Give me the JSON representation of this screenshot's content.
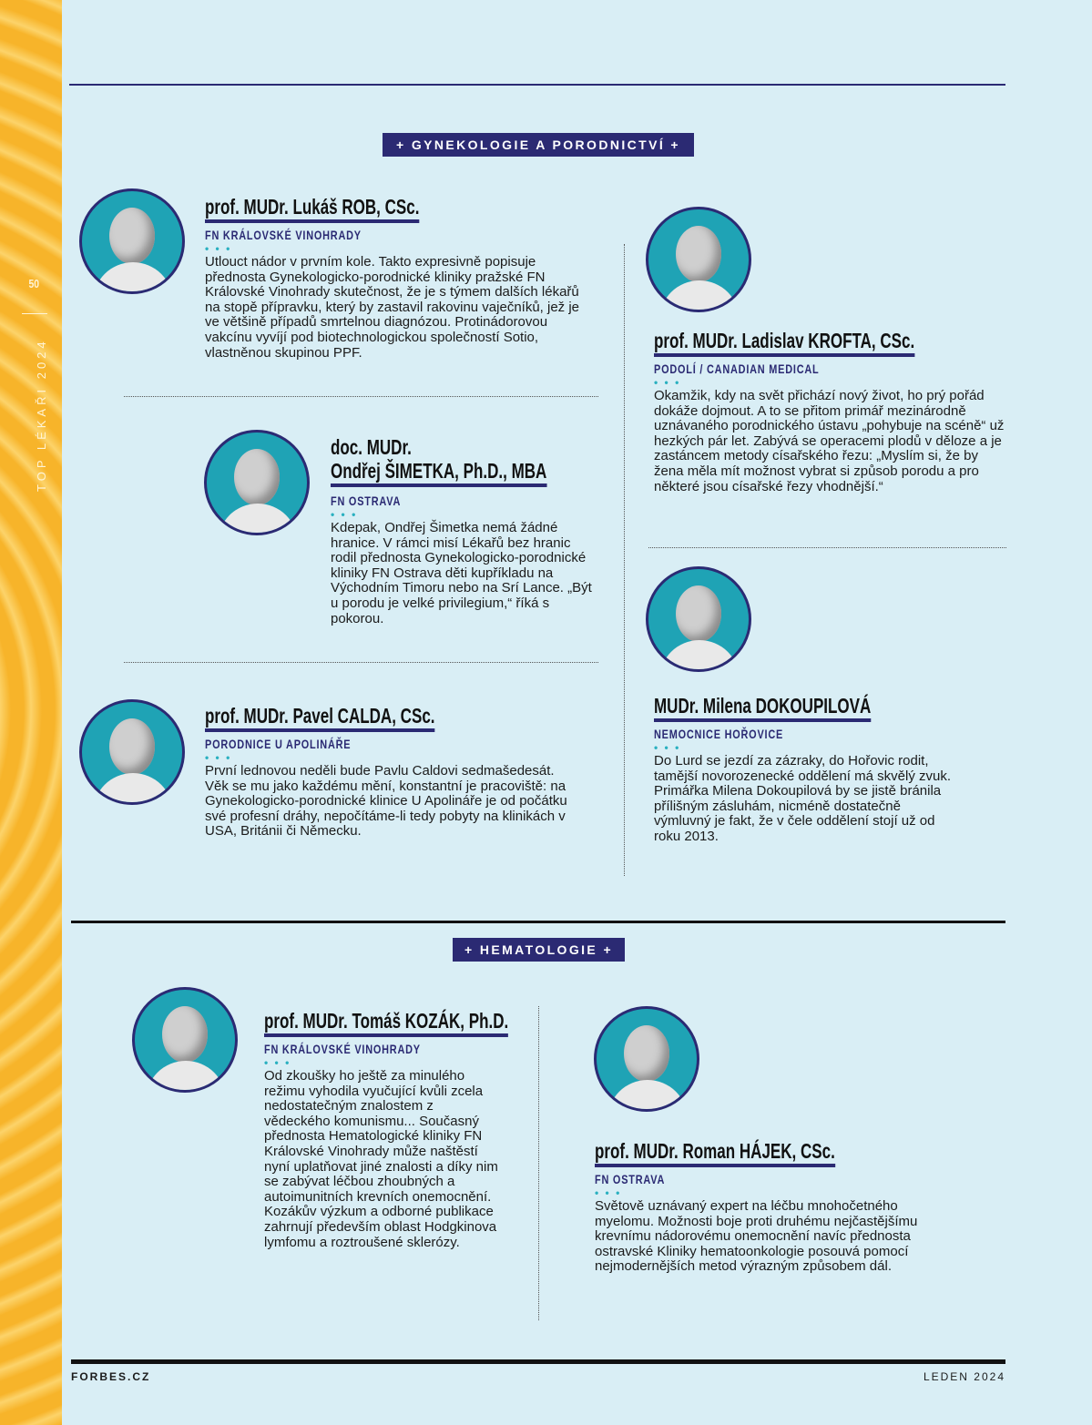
{
  "sidebar": {
    "page_number": "50",
    "title": "TOP LÉKAŘI 2024"
  },
  "colors": {
    "navy": "#2b2a73",
    "teal": "#1fa3b5",
    "background": "#d9eef5",
    "strip": "#f7b42a"
  },
  "sections": [
    {
      "label": "+ GYNEKOLOGIE A PORODNICTVÍ +"
    },
    {
      "label": "+ HEMATOLOGIE +"
    }
  ],
  "dots": "• • •",
  "profiles": [
    {
      "name": "prof. MUDr. Lukáš ROB, CSc.",
      "institution": "FN KRÁLOVSKÉ VINOHRADY",
      "bio": "Utlouct nádor v prvním kole. Takto expresivně popisuje přednosta Gynekologicko-porodnické kliniky pražské FN Královské Vinohrady skutečnost, že je s týmem dalších lékařů na stopě přípravku, který by zastavil rakovinu vaječníků, jež je ve většině případů smrtelnou diagnózou. Protinádorovou vakcínu vyvíjí pod biotechnologickou společností Sotio, vlastněnou skupinou PPF."
    },
    {
      "name": "prof. MUDr. Ladislav KROFTA, CSc.",
      "institution": "PODOLÍ / CANADIAN MEDICAL",
      "bio": "Okamžik, kdy na svět přichází nový život, ho prý pořád dokáže dojmout. A to se přitom primář mezinárodně uznávaného porodnického ústavu „pohybuje na scéně“ už hezkých pár let. Zabývá se operacemi plodů v děloze a je zastáncem metody císařského řezu: „Myslím si, že by žena měla mít možnost vybrat si způsob porodu a pro některé jsou císařské řezy vhodnější.“"
    },
    {
      "name_line1": "doc. MUDr.",
      "name_line2": "Ondřej ŠIMETKA, Ph.D., MBA",
      "institution": "FN OSTRAVA",
      "bio": "Kdepak, Ondřej Šimetka nemá žádné hranice. V rámci misí Lékařů bez hranic rodil přednosta Gynekologicko-porodnické kliniky FN Ostrava děti kupříkladu na Východním Timoru nebo na Srí Lance. „Být u porodu je velké privilegium,“ říká s pokorou."
    },
    {
      "name": "prof. MUDr. Pavel CALDA, CSc.",
      "institution": "PORODNICE U APOLINÁŘE",
      "bio": "První lednovou neděli bude Pavlu Caldovi sedmašedesát. Věk se mu jako každému mění, konstantní je pracoviště: na Gynekologicko-porodnické klinice U Apolináře je od počátku své profesní dráhy, nepočítáme-li tedy pobyty na klinikách v USA, Británii či Německu."
    },
    {
      "name": "MUDr. Milena DOKOUPILOVÁ",
      "institution": "NEMOCNICE HOŘOVICE",
      "bio": "Do Lurd se jezdí za zázraky, do Hořovic rodit, tamější novorozenecké oddělení má skvělý zvuk. Primářka Milena Dokoupilová by se jistě bránila přílišným zásluhám, nicméně dostatečně výmluvný je fakt, že v čele oddělení stojí už od roku 2013."
    },
    {
      "name": "prof. MUDr. Tomáš KOZÁK, Ph.D.",
      "institution": "FN KRÁLOVSKÉ VINOHRADY",
      "bio": "Od zkoušky ho ještě za minulého režimu vyhodila vyučující kvůli zcela nedostatečným znalostem z vědeckého komunismu... Současný přednosta Hematologické kliniky FN Královské Vinohrady může naštěstí nyní uplatňovat jiné znalosti a díky nim se zabývat léčbou zhoubných a autoimunitních krevních onemocnění. Kozákův výzkum a odborné publikace zahrnují především oblast Hodgkinova lymfomu a roztroušené sklerózy."
    },
    {
      "name": "prof. MUDr. Roman HÁJEK, CSc.",
      "institution": "FN OSTRAVA",
      "bio": "Světově uznávaný expert na léčbu mnohočetného myelomu. Možnosti boje proti druhému nejčastějšímu krevnímu nádorovému onemocnění navíc přednosta ostravské Kliniky hematoonkologie posouvá pomocí nejmodernějších metod výrazným způsobem dál."
    }
  ],
  "footer": {
    "left": "FORBES.CZ",
    "right": "LEDEN 2024"
  }
}
